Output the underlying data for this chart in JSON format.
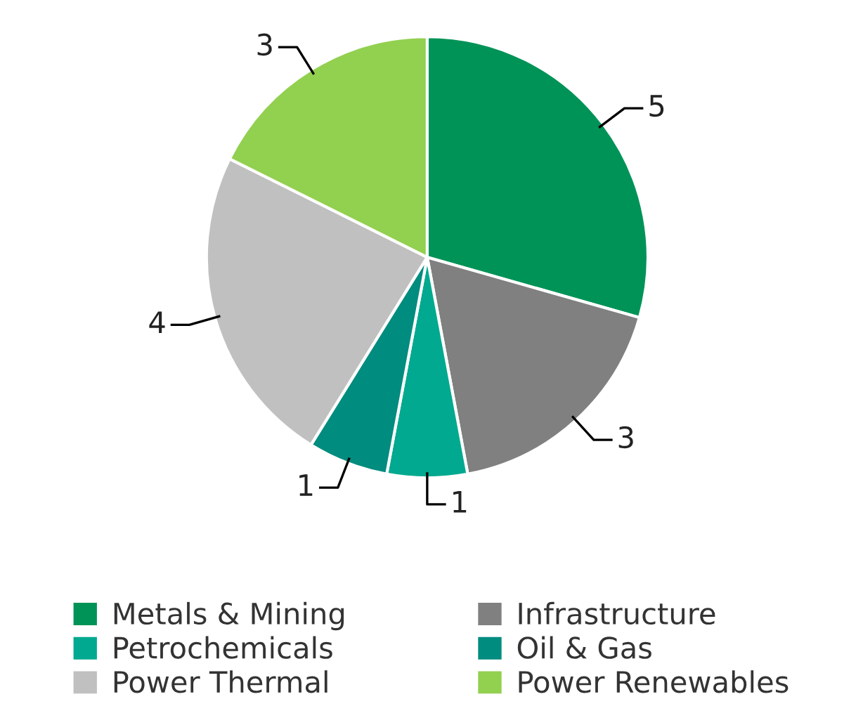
{
  "chart_data": {
    "type": "pie",
    "categories": [
      "Metals & Mining",
      "Infrastructure",
      "Petrochemicals",
      "Oil & Gas",
      "Power Thermal",
      "Power Renewables"
    ],
    "values": [
      5,
      3,
      1,
      1,
      4,
      3
    ],
    "colors": [
      "#009357",
      "#808080",
      "#00a98f",
      "#008c7e",
      "#c0c0c0",
      "#92d050"
    ],
    "data_labels": true,
    "legend": "bottom"
  }
}
